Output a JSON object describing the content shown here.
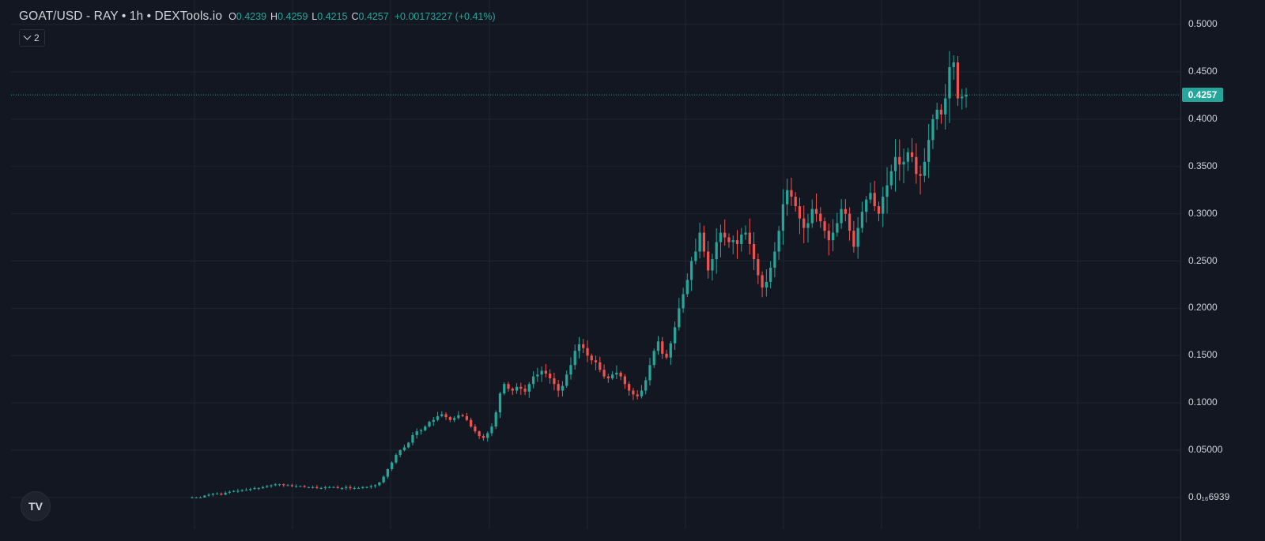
{
  "legend": {
    "symbol_title": "GOAT/USD - RAY • 1h • DEXTools.io",
    "open_key": "O",
    "open_value": "0.4239",
    "high_key": "H",
    "high_value": "0.4259",
    "low_key": "L",
    "low_value": "0.4215",
    "close_key": "C",
    "close_value": "0.4257",
    "change_text": "+0.00173227 (+0.41%)"
  },
  "indicators_button": {
    "label": "2",
    "icon": "chevron-down-icon"
  },
  "logo": {
    "text": "TV",
    "icon": "tradingview-logo-icon"
  },
  "colors": {
    "background": "#131722",
    "up": "#26a69a",
    "down": "#ef5350",
    "grid": "#1f2430",
    "text": "#d1d4dc"
  },
  "chart_data": {
    "type": "candlestick",
    "y_axis_labels": [
      "0.5000",
      "0.4500",
      "0.4000",
      "0.3500",
      "0.3000",
      "0.2500",
      "0.2000",
      "0.1500",
      "0.1000",
      "0.05000",
      "0.0₁₆6939"
    ],
    "y_ticks": [
      0.5,
      0.45,
      0.4,
      0.35,
      0.3,
      0.25,
      0.2,
      0.15,
      0.1,
      0.05,
      0.0
    ],
    "ylim": [
      -0.046,
      0.526
    ],
    "last_price": 0.4257,
    "last_price_label": "0.4257",
    "grid": true,
    "scale": "linear",
    "approximate_closes": [
      0.0,
      0.0,
      0.0,
      0.002,
      0.003,
      0.004,
      0.004,
      0.003,
      0.005,
      0.006,
      0.007,
      0.007,
      0.008,
      0.008,
      0.009,
      0.01,
      0.01,
      0.011,
      0.012,
      0.013,
      0.014,
      0.014,
      0.013,
      0.013,
      0.012,
      0.012,
      0.012,
      0.011,
      0.011,
      0.011,
      0.01,
      0.01,
      0.011,
      0.011,
      0.011,
      0.01,
      0.01,
      0.011,
      0.01,
      0.01,
      0.01,
      0.011,
      0.011,
      0.012,
      0.013,
      0.016,
      0.022,
      0.03,
      0.037,
      0.045,
      0.05,
      0.053,
      0.058,
      0.066,
      0.07,
      0.071,
      0.075,
      0.08,
      0.082,
      0.086,
      0.088,
      0.085,
      0.082,
      0.084,
      0.087,
      0.086,
      0.082,
      0.075,
      0.07,
      0.065,
      0.063,
      0.068,
      0.075,
      0.09,
      0.11,
      0.12,
      0.115,
      0.113,
      0.117,
      0.115,
      0.112,
      0.12,
      0.128,
      0.13,
      0.134,
      0.131,
      0.126,
      0.12,
      0.113,
      0.118,
      0.13,
      0.14,
      0.155,
      0.162,
      0.158,
      0.15,
      0.145,
      0.143,
      0.135,
      0.128,
      0.126,
      0.13,
      0.132,
      0.128,
      0.12,
      0.113,
      0.109,
      0.107,
      0.113,
      0.124,
      0.14,
      0.155,
      0.165,
      0.152,
      0.148,
      0.163,
      0.18,
      0.2,
      0.215,
      0.23,
      0.25,
      0.26,
      0.28,
      0.26,
      0.24,
      0.252,
      0.27,
      0.28,
      0.275,
      0.27,
      0.272,
      0.268,
      0.278,
      0.28,
      0.268,
      0.252,
      0.235,
      0.222,
      0.228,
      0.243,
      0.26,
      0.282,
      0.31,
      0.325,
      0.318,
      0.308,
      0.295,
      0.285,
      0.29,
      0.305,
      0.3,
      0.292,
      0.282,
      0.272,
      0.28,
      0.29,
      0.305,
      0.3,
      0.282,
      0.265,
      0.285,
      0.302,
      0.315,
      0.322,
      0.308,
      0.3,
      0.318,
      0.33,
      0.345,
      0.36,
      0.352,
      0.355,
      0.365,
      0.36,
      0.342,
      0.34,
      0.355,
      0.378,
      0.4,
      0.41,
      0.405,
      0.422,
      0.455,
      0.46,
      0.422,
      0.4239,
      0.4257
    ]
  }
}
